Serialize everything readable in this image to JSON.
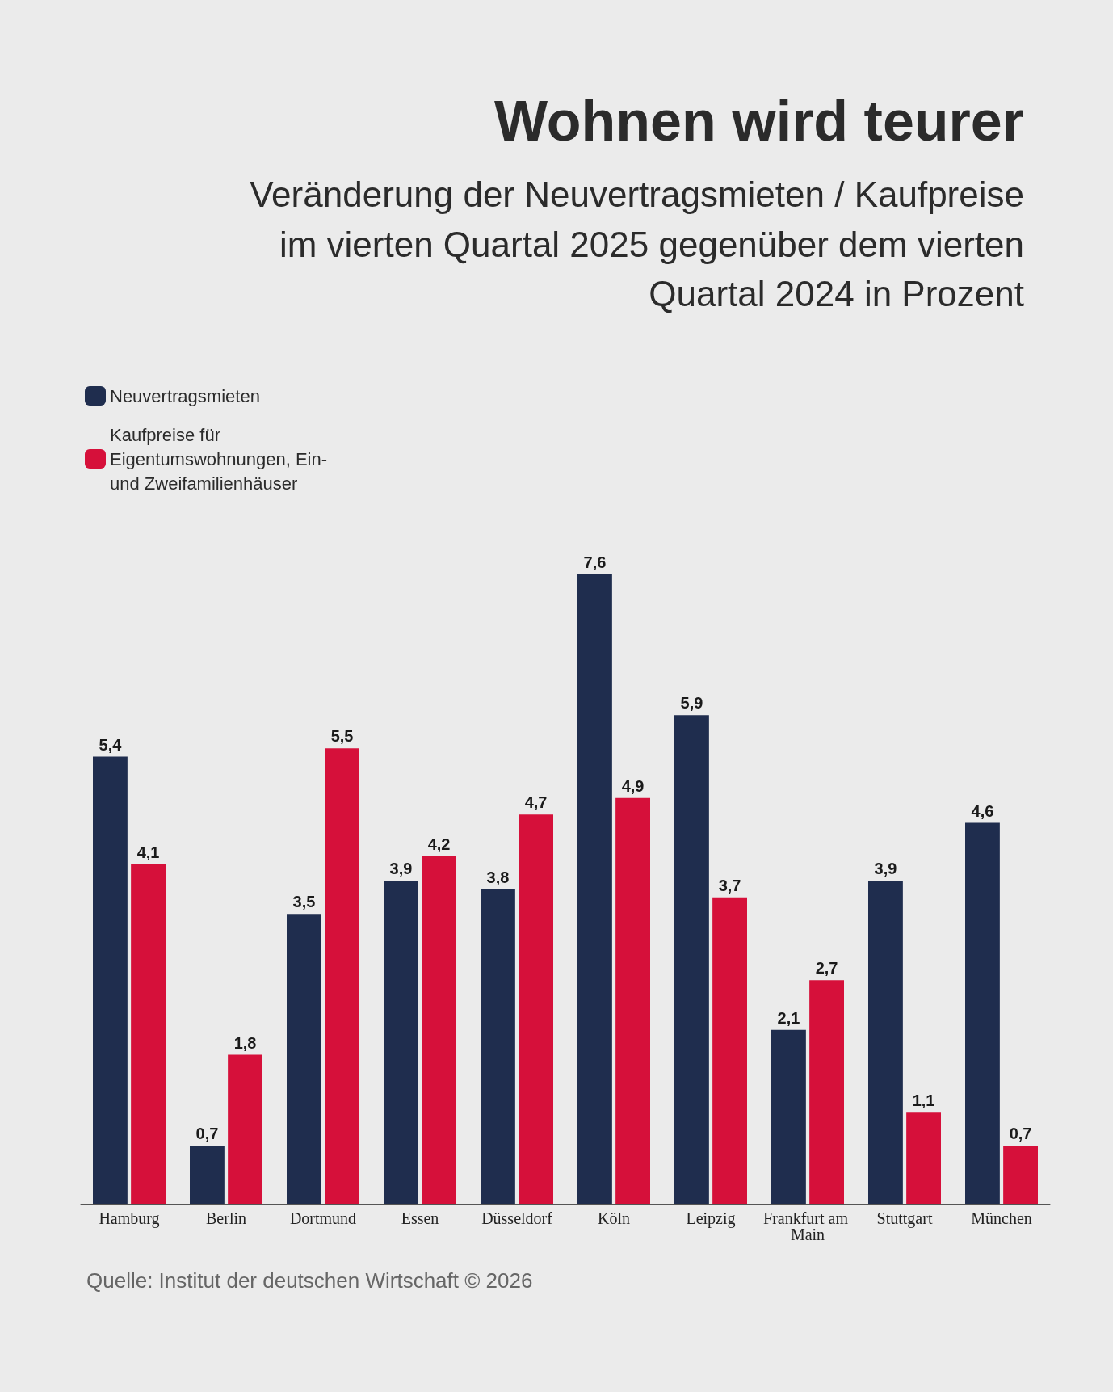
{
  "chart_data": {
    "type": "bar",
    "title": "Wohnen wird teurer",
    "subtitle": "Veränderung der Neuvertragsmieten / Kaufpreise im vierten Quartal 2025 gegenüber dem vierten Quartal 2024 in Prozent",
    "categories": [
      "Hamburg",
      "Berlin",
      "Dortmund",
      "Essen",
      "Düsseldorf",
      "Köln",
      "Leipzig",
      "Frankfurt am Main",
      "Stuttgart",
      "München"
    ],
    "series": [
      {
        "name": "Neuvertragsmieten",
        "color": "#1f2d4e",
        "values": [
          5.4,
          0.7,
          3.5,
          3.9,
          3.8,
          7.6,
          5.9,
          2.1,
          3.9,
          4.6
        ],
        "value_labels": [
          "5,4",
          "0,7",
          "3,5",
          "3,9",
          "3,8",
          "7,6",
          "5,9",
          "2,1",
          "3,9",
          "4,6"
        ]
      },
      {
        "name": "Kaufpreise für Eigentumswohnungen, Ein- und Zweifamilienhäuser",
        "color": "#d6103a",
        "values": [
          4.1,
          1.8,
          5.5,
          4.2,
          4.7,
          4.9,
          3.7,
          2.7,
          1.1,
          0.7
        ],
        "value_labels": [
          "4,1",
          "1,8",
          "5,5",
          "4,2",
          "4,7",
          "4,9",
          "3,7",
          "2,7",
          "1,1",
          "0,7"
        ]
      }
    ],
    "legend": "top left",
    "annotations": [
      "Quelle: Institut der deutschen Wirtschaft  © 2026"
    ]
  }
}
